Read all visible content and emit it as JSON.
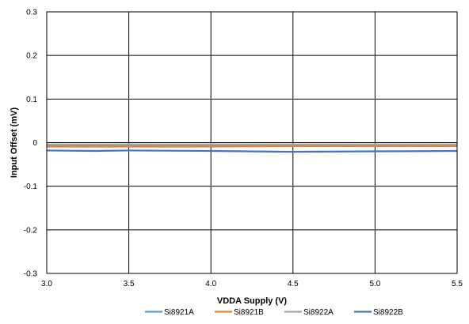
{
  "chart_data": {
    "type": "line",
    "xlabel": "VDDA Supply (V)",
    "ylabel": "Input Offset (mV)",
    "xlim": [
      3.0,
      5.5
    ],
    "ylim": [
      -0.3,
      0.3
    ],
    "x_ticks": [
      "3.0",
      "3.5",
      "4.0",
      "4.5",
      "5.0",
      "5.5"
    ],
    "y_ticks": [
      "0.3",
      "0.2",
      "0.1",
      "0",
      "-0.1",
      "-0.2",
      "-0.3"
    ],
    "grid": true,
    "legend_position": "bottom",
    "series": [
      {
        "name": "Si8921A",
        "color": "#5b9bd5",
        "x": [
          3.0,
          3.5,
          4.0,
          4.5,
          5.0,
          5.5
        ],
        "values": [
          -0.007,
          -0.007,
          -0.007,
          -0.006,
          -0.006,
          -0.006
        ]
      },
      {
        "name": "Si8921B",
        "color": "#ed7d31",
        "x": [
          3.0,
          3.5,
          4.0,
          4.5,
          5.0,
          5.5
        ],
        "values": [
          -0.009,
          -0.009,
          -0.009,
          -0.008,
          -0.008,
          -0.008
        ]
      },
      {
        "name": "Si8922A",
        "color": "#a5a5a5",
        "x": [
          3.0,
          3.5,
          4.0,
          4.5,
          5.0,
          5.5
        ],
        "values": [
          -0.004,
          -0.004,
          -0.004,
          -0.004,
          -0.004,
          -0.004
        ]
      },
      {
        "name": "Si8922B",
        "color": "#4472c4",
        "x": [
          3.0,
          3.3,
          3.5,
          4.0,
          4.5,
          5.0,
          5.5
        ],
        "values": [
          -0.018,
          -0.019,
          -0.018,
          -0.019,
          -0.021,
          -0.02,
          -0.019
        ]
      }
    ]
  }
}
